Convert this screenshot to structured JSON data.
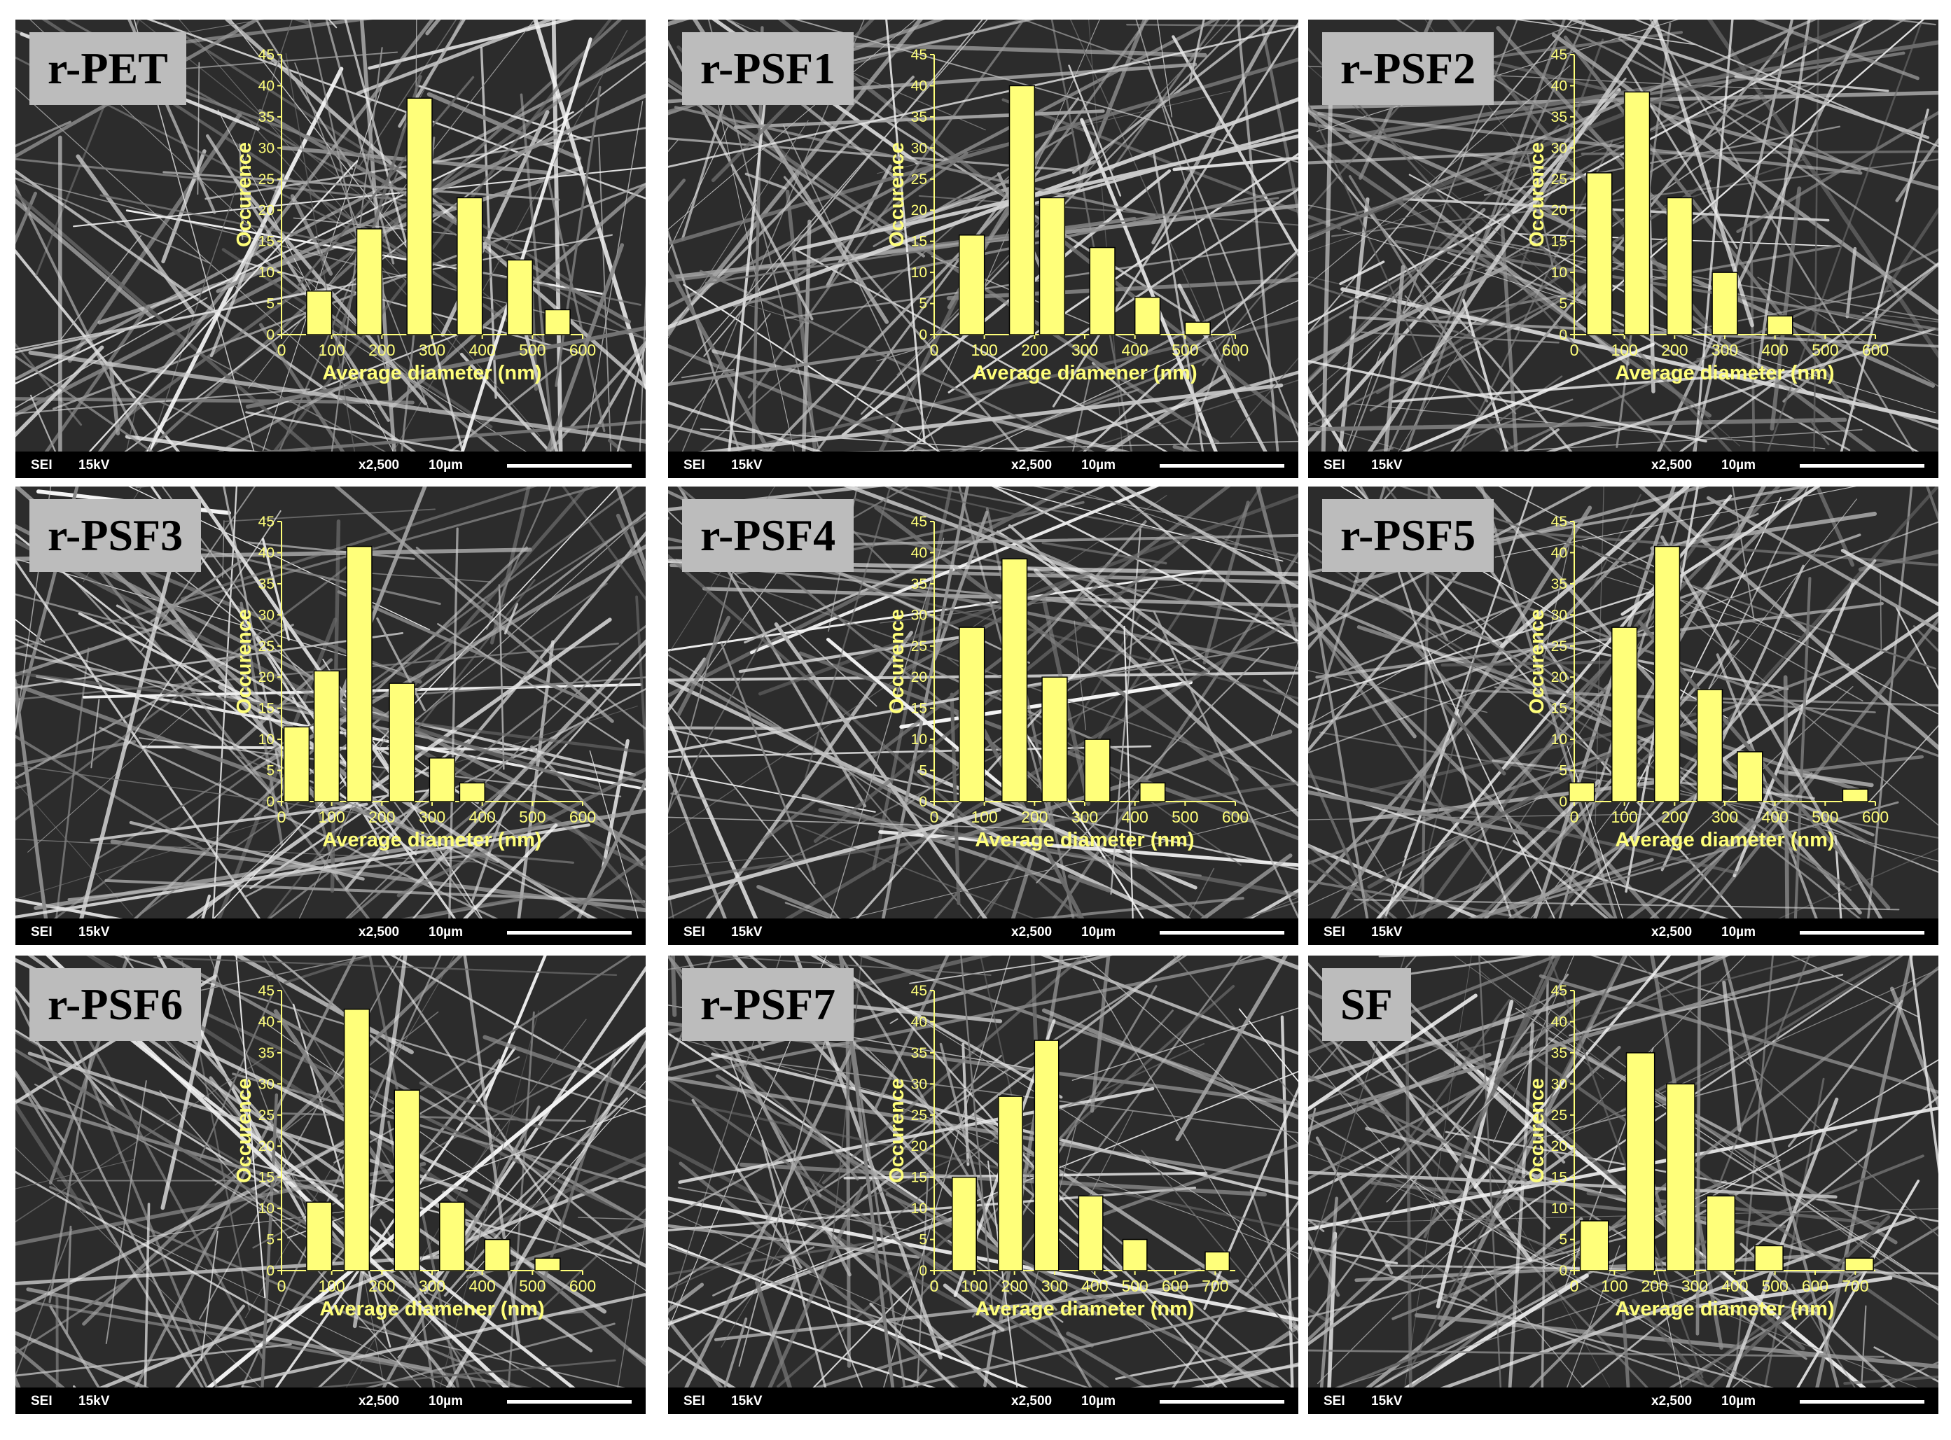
{
  "style": {
    "bar_color": "#ffff7a",
    "text_color": "#ffff7a",
    "label_bg": "#bcbcbc",
    "bar_stroke": "#000000"
  },
  "chart_data": [
    {
      "type": "bar",
      "panel_label": "r-PET",
      "xlabel": "Average diameter (nm)",
      "ylabel": "Occurence",
      "xlim": [
        0,
        600
      ],
      "xticks": [
        0,
        100,
        200,
        300,
        400,
        500,
        600
      ],
      "ylim": [
        0,
        45
      ],
      "yticks": [
        0,
        5,
        10,
        15,
        20,
        25,
        30,
        35,
        40,
        45
      ],
      "bin_width": 50,
      "bin_centers": [
        75,
        175,
        275,
        375,
        475,
        550
      ],
      "values": [
        7,
        17,
        38,
        22,
        12,
        4
      ],
      "sem_info": {
        "detector": "SEI",
        "voltage": "15kV",
        "magnification": "x2,500",
        "scale": "10µm"
      }
    },
    {
      "type": "bar",
      "panel_label": "r-PSF1",
      "xlabel": "Average diamener (nm)",
      "ylabel": "Occurence",
      "xlim": [
        0,
        600
      ],
      "xticks": [
        0,
        100,
        200,
        300,
        400,
        500,
        600
      ],
      "ylim": [
        0,
        45
      ],
      "yticks": [
        0,
        5,
        10,
        15,
        20,
        25,
        30,
        35,
        40,
        45
      ],
      "bin_width": 50,
      "bin_centers": [
        75,
        175,
        235,
        335,
        425,
        525
      ],
      "values": [
        16,
        40,
        22,
        14,
        6,
        2
      ],
      "sem_info": {
        "detector": "SEI",
        "voltage": "15kV",
        "magnification": "x2,500",
        "scale": "10µm"
      }
    },
    {
      "type": "bar",
      "panel_label": "r-PSF2",
      "xlabel": "Average diameter (nm)",
      "ylabel": "Occurence",
      "xlim": [
        0,
        600
      ],
      "xticks": [
        0,
        100,
        200,
        300,
        400,
        500,
        600
      ],
      "ylim": [
        0,
        45
      ],
      "yticks": [
        0,
        5,
        10,
        15,
        20,
        25,
        30,
        35,
        40,
        45
      ],
      "bin_width": 50,
      "bin_centers": [
        50,
        125,
        210,
        300,
        410
      ],
      "values": [
        26,
        39,
        22,
        10,
        3
      ],
      "sem_info": {
        "detector": "SEI",
        "voltage": "15kV",
        "magnification": "x2,500",
        "scale": "10µm"
      }
    },
    {
      "type": "bar",
      "panel_label": "r-PSF3",
      "xlabel": "Average diameter (nm)",
      "ylabel": "Occurence",
      "xlim": [
        0,
        600
      ],
      "xticks": [
        0,
        100,
        200,
        300,
        400,
        500,
        600
      ],
      "ylim": [
        0,
        45
      ],
      "yticks": [
        0,
        5,
        10,
        15,
        20,
        25,
        30,
        35,
        40,
        45
      ],
      "bin_width": 50,
      "bin_centers": [
        30,
        90,
        155,
        240,
        320,
        380
      ],
      "values": [
        12,
        21,
        41,
        19,
        7,
        3
      ],
      "sem_info": {
        "detector": "SEI",
        "voltage": "15kV",
        "magnification": "x2,500",
        "scale": "10µm"
      }
    },
    {
      "type": "bar",
      "panel_label": "r-PSF4",
      "xlabel": "Average diameter (nm)",
      "ylabel": "Occurence",
      "xlim": [
        0,
        600
      ],
      "xticks": [
        0,
        100,
        200,
        300,
        400,
        500,
        600
      ],
      "ylim": [
        0,
        45
      ],
      "yticks": [
        0,
        5,
        10,
        15,
        20,
        25,
        30,
        35,
        40,
        45
      ],
      "bin_width": 50,
      "bin_centers": [
        75,
        160,
        240,
        325,
        435
      ],
      "values": [
        28,
        39,
        20,
        10,
        3
      ],
      "sem_info": {
        "detector": "SEI",
        "voltage": "15kV",
        "magnification": "x2,500",
        "scale": "10µm"
      }
    },
    {
      "type": "bar",
      "panel_label": "r-PSF5",
      "xlabel": "Average diameter (nm)",
      "ylabel": "Occurence",
      "xlim": [
        0,
        600
      ],
      "xticks": [
        0,
        100,
        200,
        300,
        400,
        500,
        600
      ],
      "ylim": [
        0,
        45
      ],
      "yticks": [
        0,
        5,
        10,
        15,
        20,
        25,
        30,
        35,
        40,
        45
      ],
      "bin_width": 50,
      "bin_centers": [
        15,
        100,
        185,
        270,
        350,
        560
      ],
      "values": [
        3,
        28,
        41,
        18,
        8,
        2
      ],
      "sem_info": {
        "detector": "SEI",
        "voltage": "15kV",
        "magnification": "x2,500",
        "scale": "10µm"
      }
    },
    {
      "type": "bar",
      "panel_label": "r-PSF6",
      "xlabel": "Average diamener (nm)",
      "ylabel": "Occurence",
      "xlim": [
        0,
        600
      ],
      "xticks": [
        0,
        100,
        200,
        300,
        400,
        500,
        600
      ],
      "ylim": [
        0,
        45
      ],
      "yticks": [
        0,
        5,
        10,
        15,
        20,
        25,
        30,
        35,
        40,
        45
      ],
      "bin_width": 50,
      "bin_centers": [
        75,
        150,
        250,
        340,
        430,
        530
      ],
      "values": [
        11,
        42,
        29,
        11,
        5,
        2
      ],
      "sem_info": {
        "detector": "SEI",
        "voltage": "15kV",
        "magnification": "x2,500",
        "scale": "10µm"
      }
    },
    {
      "type": "bar",
      "panel_label": "r-PSF7",
      "xlabel": "Average diameter (nm)",
      "ylabel": "Occurence",
      "xlim": [
        0,
        750
      ],
      "xticks": [
        0,
        100,
        200,
        300,
        400,
        500,
        600,
        700
      ],
      "ylim": [
        0,
        45
      ],
      "yticks": [
        0,
        5,
        10,
        15,
        20,
        25,
        30,
        35,
        40,
        45
      ],
      "bin_width": 60,
      "bin_centers": [
        75,
        190,
        280,
        390,
        500,
        705
      ],
      "values": [
        15,
        28,
        37,
        12,
        5,
        3
      ],
      "sem_info": {
        "detector": "SEI",
        "voltage": "15kV",
        "magnification": "x2,500",
        "scale": "10µm"
      }
    },
    {
      "type": "bar",
      "panel_label": "SF",
      "xlabel": "Average diameter (nm)",
      "ylabel": "Occurence",
      "xlim": [
        0,
        750
      ],
      "xticks": [
        0,
        100,
        200,
        300,
        400,
        500,
        600,
        700
      ],
      "ylim": [
        0,
        45
      ],
      "yticks": [
        0,
        5,
        10,
        15,
        20,
        25,
        30,
        35,
        40,
        45
      ],
      "bin_width": 70,
      "bin_centers": [
        50,
        165,
        265,
        365,
        485,
        710
      ],
      "values": [
        8,
        35,
        30,
        12,
        4,
        2
      ],
      "sem_info": {
        "detector": "SEI",
        "voltage": "15kV",
        "magnification": "x2,500",
        "scale": "10µm"
      }
    }
  ]
}
